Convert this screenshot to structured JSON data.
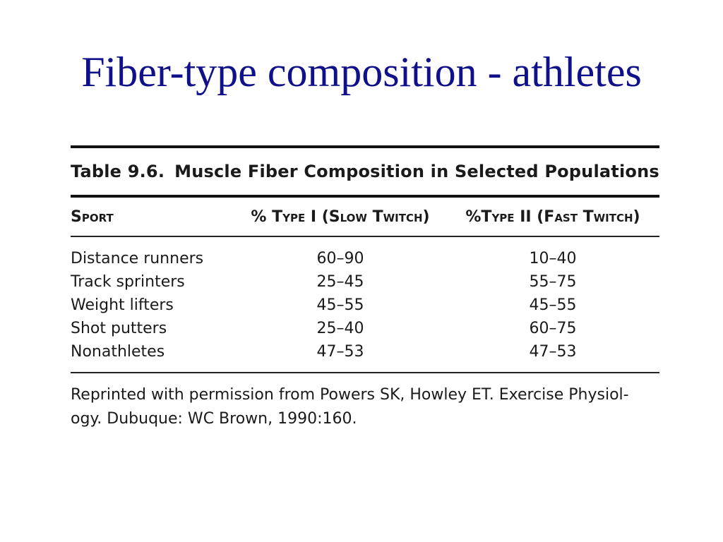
{
  "slide": {
    "title": "Fiber-type composition - athletes"
  },
  "table": {
    "caption_number": "Table 9.6.",
    "caption_text": "Muscle Fiber Composition in Selected Populations",
    "headers": {
      "sport": "Sport",
      "type1": "% Type I (Slow Twitch)",
      "type2": "%Type II (Fast Twitch)"
    },
    "rows": [
      {
        "sport": "Distance runners",
        "type1": "60–90",
        "type2": "10–40"
      },
      {
        "sport": "Track sprinters",
        "type1": "25–45",
        "type2": "55–75"
      },
      {
        "sport": "Weight lifters",
        "type1": "45–55",
        "type2": "45–55"
      },
      {
        "sport": "Shot putters",
        "type1": "25–40",
        "type2": "60–75"
      },
      {
        "sport": "Nonathletes",
        "type1": "47–53",
        "type2": "47–53"
      }
    ],
    "reprint_line1": "Reprinted with permission from Powers SK, Howley ET. Exercise Physiol-",
    "reprint_line2": "ogy. Dubuque: WC Brown, 1990:160."
  }
}
